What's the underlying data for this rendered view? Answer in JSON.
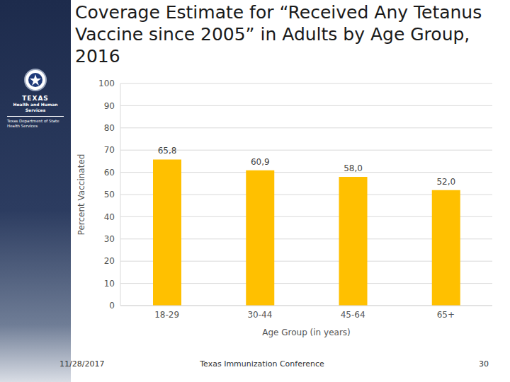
{
  "chart_data": {
    "type": "bar",
    "title": "Coverage Estimate for “Received Any Tetanus Vaccine since 2005” in Adults by Age Group, 2016",
    "x_label": "Age Group (in years)",
    "y_label": "Percent Vaccinated",
    "categories": [
      "18-29",
      "30-44",
      "45-64",
      "65+"
    ],
    "values": [
      65.8,
      60.9,
      58.0,
      52.0
    ],
    "value_labels": [
      "65,8",
      "60,9",
      "58,0",
      "52,0"
    ],
    "color": "#FFC000",
    "ylim": [
      0,
      100
    ],
    "yticks": [
      0,
      10,
      20,
      30,
      40,
      50,
      60,
      70,
      80,
      90,
      100
    ],
    "grid": true,
    "data_labels": true
  },
  "slide": {
    "logo": {
      "name": "TEXAS",
      "agency": "Health and Human Services",
      "department": "Texas Department of State Health Services"
    },
    "footer": {
      "date": "11/28/2017",
      "event": "Texas Immunization Conference",
      "page": "30"
    }
  }
}
